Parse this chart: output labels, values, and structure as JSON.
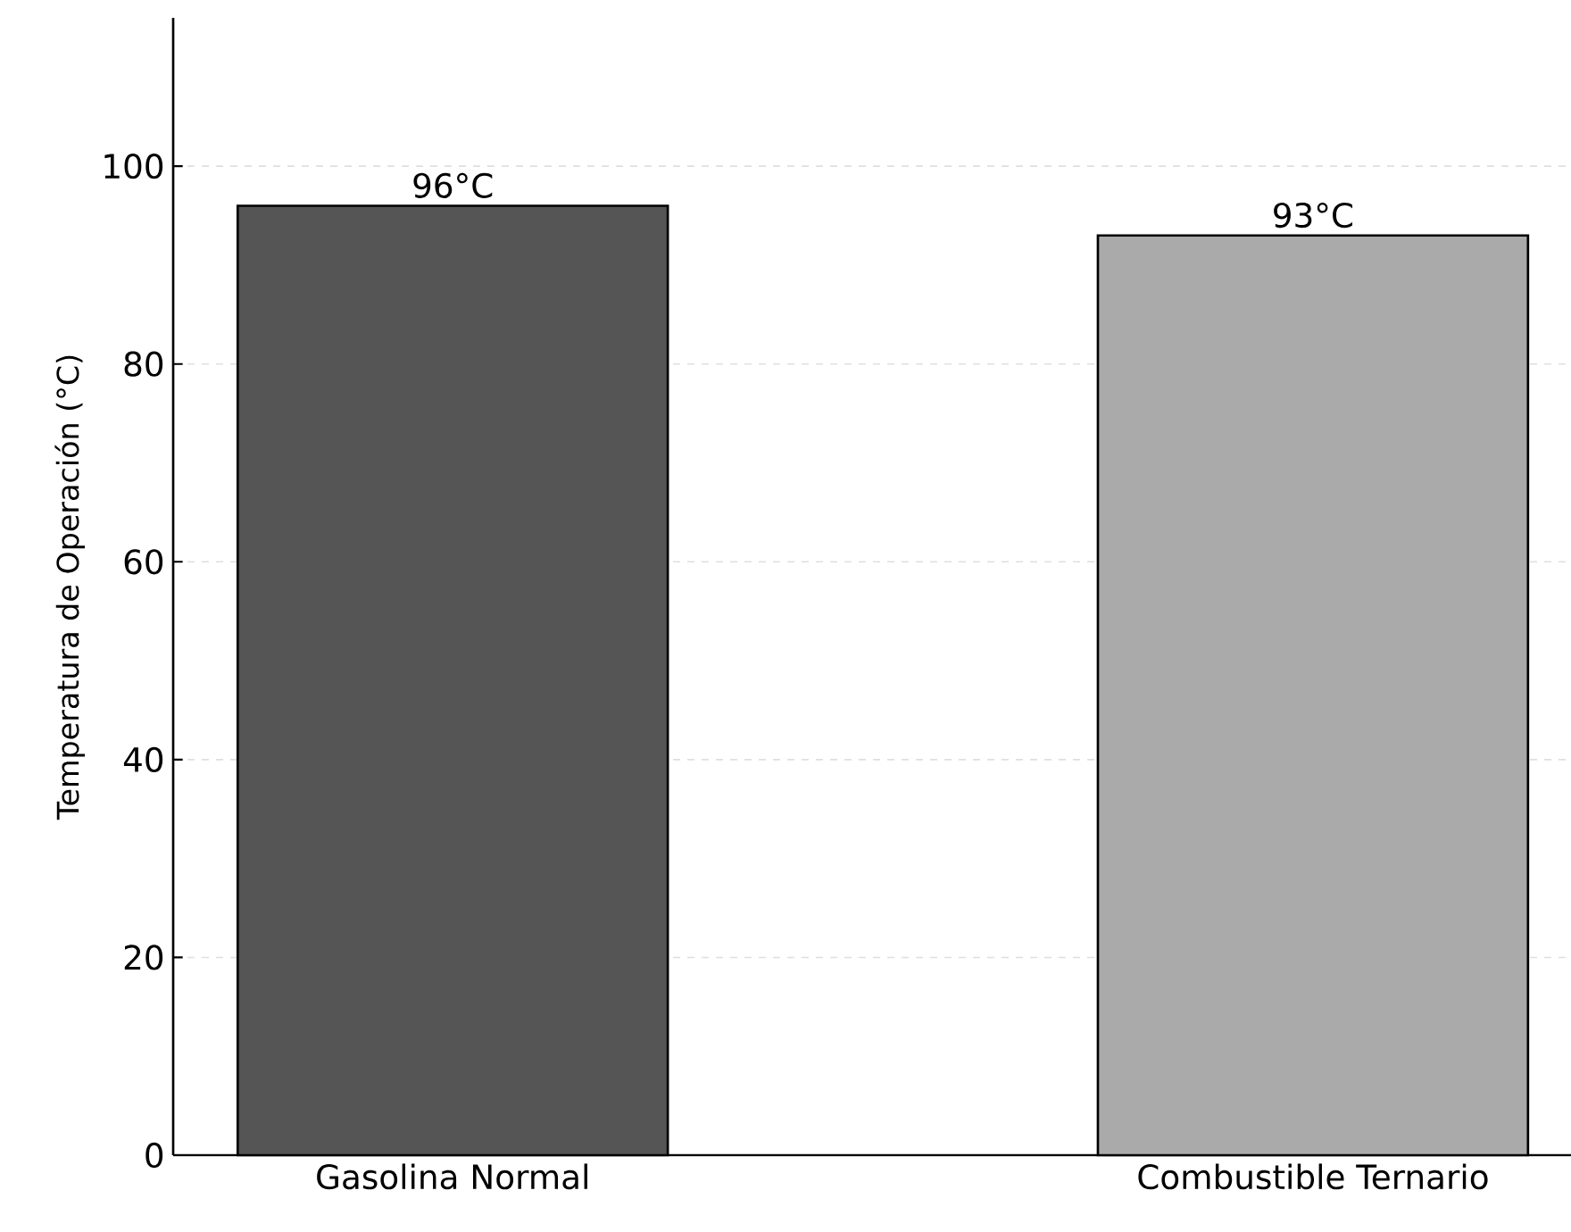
{
  "chart_data": {
    "type": "bar",
    "ylabel": "Temperatura de Operación (°C)",
    "categories": [
      "Gasolina Normal",
      "Combustible Ternario"
    ],
    "values": [
      96,
      93
    ],
    "colors": [
      "#555555",
      "#aaaaaa"
    ],
    "value_labels": [
      "96°C",
      "93°C"
    ],
    "ylim": [
      0,
      115
    ],
    "yticks": [
      0,
      20,
      40,
      60,
      80,
      100
    ],
    "grid": "y"
  }
}
